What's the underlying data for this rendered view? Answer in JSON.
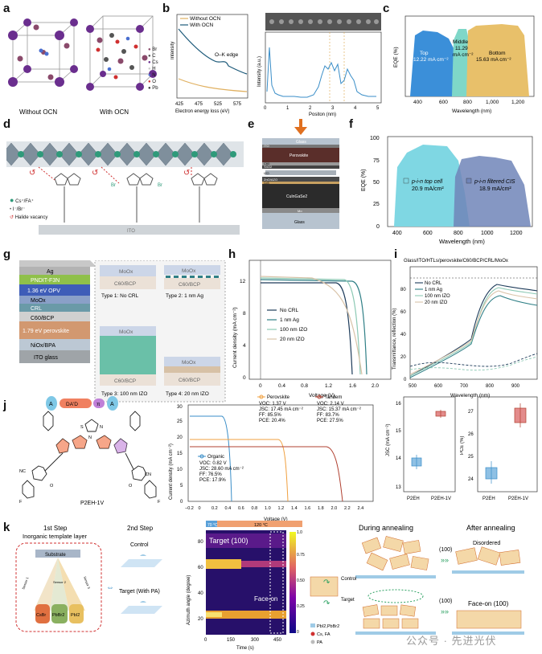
{
  "panel_labels": [
    "a",
    "b",
    "c",
    "d",
    "e",
    "f",
    "g",
    "h",
    "i",
    "j",
    "k"
  ],
  "a": {
    "captions": [
      "Without OCN",
      "With OCN"
    ],
    "legend": [
      {
        "label": "Br",
        "color": "#8a4a6b"
      },
      {
        "label": "C",
        "color": "#555555"
      },
      {
        "label": "Cs",
        "color": "#6a2e8e"
      },
      {
        "label": "H",
        "color": "#cccccc"
      },
      {
        "label": "N",
        "color": "#4a6fd0"
      },
      {
        "label": "O",
        "color": "#d03030"
      },
      {
        "label": "Pb",
        "color": "#3a3a3a"
      }
    ]
  },
  "b": {
    "legend": [
      "Without OCN",
      "With OCN"
    ],
    "annotation": "O–K edge",
    "xlabel1": "Electron energy loss (eV)",
    "ylabel1": "Intensity",
    "xticks1": [
      "425",
      "475",
      "525",
      "575"
    ],
    "xlabel2": "Positon (nm)",
    "ylabel2": "Intensity (a.u.)",
    "xticks2": [
      "0",
      "1",
      "2",
      "3",
      "4",
      "5"
    ]
  },
  "c": {
    "ylabel": "EQE (%)",
    "xlabel": "Wavelength (nm)",
    "xticks": [
      "400",
      "600",
      "800",
      "1,000",
      "1,200"
    ],
    "top": [
      "Top",
      "12.22 mA cm⁻²"
    ],
    "middle": [
      "Middle",
      "11.29",
      "mA cm⁻²"
    ],
    "bottom": [
      "Bottom",
      "15.63 mA cm⁻²"
    ]
  },
  "d": {
    "legend": [
      "Cs⁺/FA⁺",
      "I⁻/Br⁻",
      "Halide vacancy"
    ],
    "substrate": "ITO",
    "br_labels": [
      "Br",
      "Br"
    ]
  },
  "e": {
    "layers_top": [
      "Glass",
      "ITO",
      "Perovskite",
      "C60",
      "SnO2",
      "IZO"
    ],
    "layers_bottom": [
      "ZnO/AZO",
      "CdS",
      "CuInGaSe2",
      "Mo",
      "Glass"
    ]
  },
  "f": {
    "ylabel": "EQE (%)",
    "xlabel": "Wavelength (nm)",
    "yticks": [
      "0",
      "25",
      "50",
      "75",
      "100"
    ],
    "xticks": [
      "400",
      "600",
      "800",
      "1000",
      "1200"
    ],
    "top_cell": [
      "p-i-n top cell",
      "20.9 mA/cm²"
    ],
    "filtered": [
      "p-i-n filtered CIS",
      "18.9 mA/cm²"
    ]
  },
  "g": {
    "stack": [
      "Ag",
      "PNDIT-F3N",
      "1.36 eV OPV",
      "MoOx",
      "CRL",
      "C60/BCP",
      "1.79 eV perovskite",
      "NiOx/BPA",
      "ITO glass"
    ],
    "types": [
      {
        "top": "MoOx",
        "bottom": "C60/BCP",
        "caption": "Type 1: No CRL"
      },
      {
        "top": "MoOx",
        "bottom": "C60/BCP",
        "caption": "Type 2: 1 nm Ag"
      },
      {
        "top": "MoOx",
        "bottom": "C60/BCP",
        "caption": "Type 3: 100 nm IZO"
      },
      {
        "top": "MoOx",
        "bottom": "C60/BCP",
        "caption": "Type 4: 20 nm IZO"
      }
    ]
  },
  "h": {
    "ylabel": "Current density (mA cm⁻²)",
    "xlabel": "Voltage (V)",
    "xticks": [
      "0",
      "0.4",
      "0.8",
      "1.2",
      "1.6",
      "2.0"
    ],
    "yticks": [
      "0",
      "4",
      "8",
      "12"
    ],
    "legend": [
      {
        "label": "No CRL",
        "color": "#1d3b5a"
      },
      {
        "label": "1 nm Ag",
        "color": "#2f7f86"
      },
      {
        "label": "100 nm IZO",
        "color": "#8cc9b4"
      },
      {
        "label": "20 nm IZO",
        "color": "#d9c3a8"
      }
    ]
  },
  "i": {
    "title": "Glass/ITO/HTLs/perovskite/C60/BCP/CRL/MoOx",
    "ylabel": "Transmittance, reflection (%)",
    "xlabel": "Wavelength (nm)",
    "xticks": [
      "500",
      "600",
      "700",
      "800",
      "900"
    ],
    "yticks": [
      "0",
      "20",
      "40",
      "60",
      "80"
    ],
    "legend": [
      {
        "label": "No CRL",
        "color": "#1d3b5a"
      },
      {
        "label": "1 nm Ag",
        "color": "#2f7f86"
      },
      {
        "label": "100 nm IZO",
        "color": "#8cc9b4"
      },
      {
        "label": "20 nm IZO",
        "color": "#d9c3a8"
      }
    ]
  },
  "j": {
    "molecule": "P2EH-1V",
    "scheme": [
      "A",
      "DA'D",
      "π",
      "A"
    ],
    "jv": {
      "ylabel": "Current density (mA cm⁻²)",
      "xlabel": "Voltage (V)",
      "xticks": [
        "−0.2",
        "0",
        "0.2",
        "0.4",
        "0.6",
        "0.8",
        "1.0",
        "1.2",
        "1.4",
        "1.6",
        "1.8",
        "2.0",
        "2.2",
        "2.4"
      ],
      "yticks": [
        "0",
        "5",
        "10",
        "15",
        "20",
        "25",
        "30"
      ],
      "perovskite": [
        "Perovskite",
        "VOC: 1.37 V",
        "JSC: 17.45 mA cm⁻²",
        "FF: 85.5%",
        "PCE: 20.4%"
      ],
      "tandem": [
        "Tandem",
        "VOC: 2.14 V",
        "JSC: 15.37 mA cm⁻²",
        "FF: 83.7%",
        "PCE: 27.5%"
      ],
      "organic": [
        "Organic",
        "VOC: 0.82 V",
        "JSC: 28.60 mA cm⁻²",
        "FF: 76.5%",
        "PCE: 17.9%"
      ]
    },
    "box1": {
      "ylabel": "JSC (mA cm⁻²)",
      "yticks": [
        "13",
        "14",
        "15",
        "16"
      ],
      "cats": [
        "P2EH",
        "P2EH-1V"
      ]
    },
    "box2": {
      "ylabel": "PCE (%)",
      "yticks": [
        "24",
        "25",
        "26",
        "27"
      ],
      "cats": [
        "P2EH",
        "P2EH-1V"
      ]
    }
  },
  "k": {
    "step1": "1st Step",
    "step1_sub": "Inorganic template layer",
    "substrate": "Substrate",
    "sensors": [
      "Sensor 1",
      "Sensor 2",
      "Sensor 3"
    ],
    "sources": [
      "CsBr",
      "PbBr2",
      "PbI2"
    ],
    "step2": "2nd Step",
    "control": "Control",
    "target": "Target (With PA)",
    "heat_labels": [
      "70 °C",
      "120 °C"
    ],
    "heat_ylabel": "Azimuth angle (degree)",
    "heat_xlabel": "Time (s)",
    "heat_xticks": [
      "0",
      "150",
      "300",
      "450"
    ],
    "heat_yticks": [
      "20",
      "40",
      "60",
      "80"
    ],
    "heat_target": "Target (100)",
    "heat_faceon": "Face-on",
    "colorbar_ticks": [
      "0",
      "0.25",
      "0.50",
      "0.75",
      "1.0"
    ],
    "during": "During annealing",
    "after": "After annealing",
    "disordered": "Disordered",
    "faceon100": "Face-on (100)",
    "label100": "(100)",
    "control_arrow": "Control",
    "target_arrow": "Target",
    "legend": [
      "PbI2,PbBr2",
      "Cs, FA",
      "PA"
    ]
  },
  "watermark": "公众号 · 先进光伏"
}
